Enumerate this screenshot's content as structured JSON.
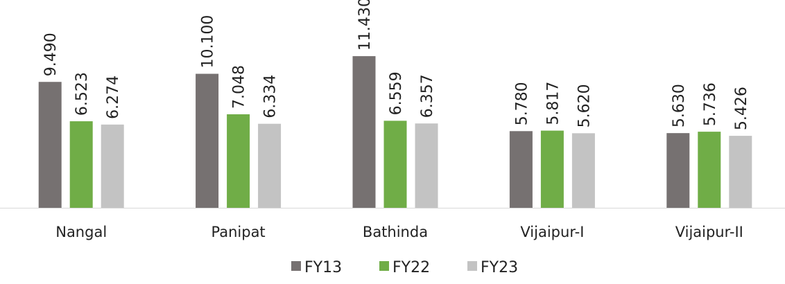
{
  "chart_data": {
    "type": "bar",
    "categories": [
      "Nangal",
      "Panipat",
      "Bathinda",
      "Vijaipur-I",
      "Vijaipur-II"
    ],
    "series": [
      {
        "name": "FY13",
        "values": [
          9.49,
          10.1,
          11.43,
          5.78,
          5.63
        ],
        "labels": [
          "9.490",
          "10.100",
          "11.430",
          "5.780",
          "5.630"
        ],
        "color": "#767171"
      },
      {
        "name": "FY22",
        "values": [
          6.523,
          7.048,
          6.559,
          5.817,
          5.736
        ],
        "labels": [
          "6.523",
          "7.048",
          "6.559",
          "5.817",
          "5.736"
        ],
        "color": "#70ad47"
      },
      {
        "name": "FY23",
        "values": [
          6.274,
          6.334,
          6.357,
          5.62,
          5.426
        ],
        "labels": [
          "6.274",
          "6.334",
          "6.357",
          "5.620",
          "5.426"
        ],
        "color": "#c3c3c3"
      }
    ],
    "ylim": [
      0,
      12
    ],
    "grid": false,
    "legend_position": "bottom",
    "axis_color": "#d9d9d9"
  }
}
